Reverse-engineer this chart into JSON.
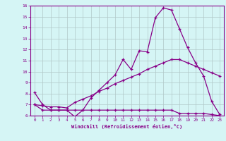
{
  "xlabel": "Windchill (Refroidissement éolien,°C)",
  "x": [
    0,
    1,
    2,
    3,
    4,
    5,
    6,
    7,
    8,
    9,
    10,
    11,
    12,
    13,
    14,
    15,
    16,
    17,
    18,
    19,
    20,
    21,
    22,
    23
  ],
  "line1": [
    8.1,
    7.0,
    6.5,
    6.5,
    6.5,
    5.9,
    6.5,
    7.6,
    8.3,
    9.0,
    9.7,
    11.1,
    10.2,
    11.9,
    11.8,
    14.9,
    15.8,
    15.6,
    13.9,
    12.2,
    10.8,
    9.6,
    7.3,
    6.1
  ],
  "line2": [
    7.0,
    6.5,
    6.5,
    6.5,
    6.5,
    6.5,
    6.5,
    6.5,
    6.5,
    6.5,
    6.5,
    6.5,
    6.5,
    6.5,
    6.5,
    6.5,
    6.5,
    6.5,
    6.2,
    6.2,
    6.2,
    6.2,
    6.1,
    6.0
  ],
  "line3": [
    7.0,
    6.9,
    6.8,
    6.8,
    6.7,
    7.2,
    7.5,
    7.8,
    8.2,
    8.5,
    8.9,
    9.2,
    9.5,
    9.8,
    10.2,
    10.5,
    10.8,
    11.1,
    11.1,
    10.8,
    10.5,
    10.2,
    9.9,
    9.6
  ],
  "line_color": "#880088",
  "bg_color": "#d5f5f5",
  "grid_color": "#b0c8c8",
  "ylim": [
    6,
    16
  ],
  "xlim": [
    -0.5,
    23.5
  ],
  "yticks": [
    6,
    7,
    8,
    9,
    10,
    11,
    12,
    13,
    14,
    15,
    16
  ],
  "xticks": [
    0,
    1,
    2,
    3,
    4,
    5,
    6,
    7,
    8,
    9,
    10,
    11,
    12,
    13,
    14,
    15,
    16,
    17,
    18,
    19,
    20,
    21,
    22,
    23
  ]
}
